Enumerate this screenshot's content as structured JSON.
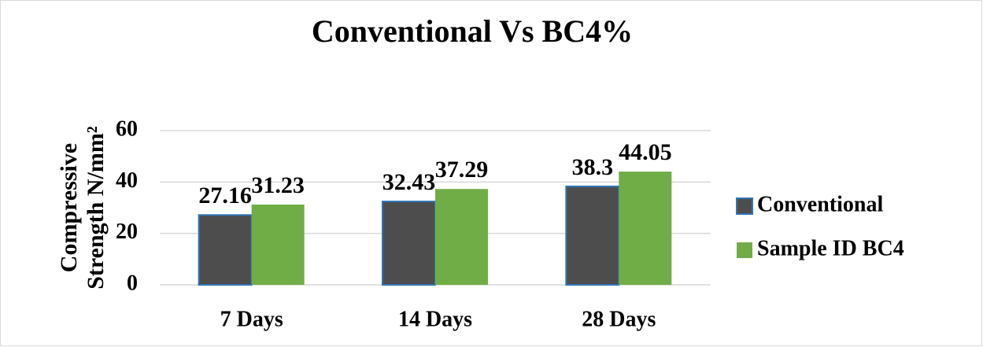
{
  "chart_data": {
    "type": "bar",
    "title": "Conventional Vs BC4%",
    "ylabel": [
      "Compressive",
      "Strength N/mm²"
    ],
    "categories": [
      "7 Days",
      "14 Days",
      "28 Days"
    ],
    "series": [
      {
        "name": "Conventional",
        "color": "#4d4d4d",
        "edge": "#2e75b6",
        "values": [
          27.16,
          32.43,
          38.3
        ]
      },
      {
        "name": "Sample ID BC4",
        "color": "#70ad47",
        "values": [
          31.23,
          37.29,
          44.05
        ]
      }
    ],
    "ylim": [
      0,
      60
    ],
    "yticks": [
      0,
      20,
      40,
      60
    ],
    "grid": true,
    "legend": "right"
  }
}
